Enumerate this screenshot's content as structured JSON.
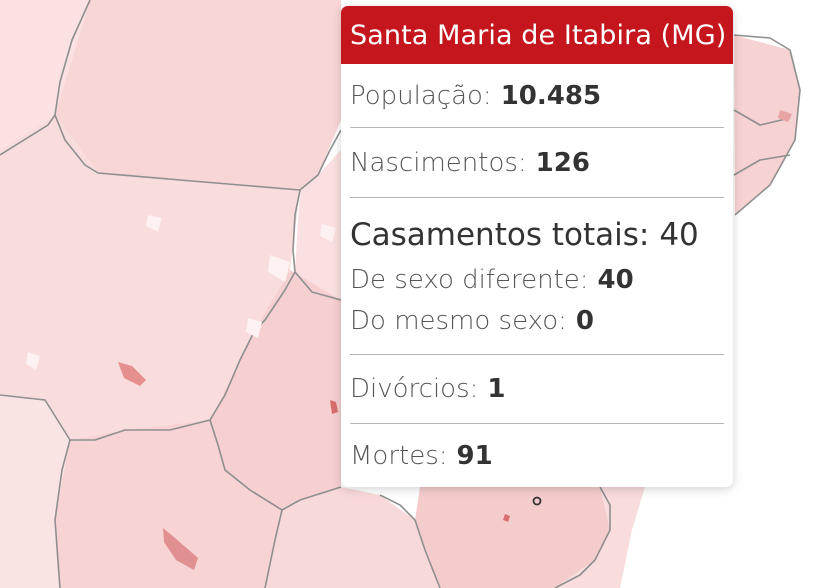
{
  "tooltip": {
    "title": "Santa Maria de Itabira (MG)",
    "header_color": "#c4161c",
    "populacao": {
      "label": "População:",
      "value": "10.485"
    },
    "nascimentos": {
      "label": "Nascimentos:",
      "value": "126"
    },
    "casamentos": {
      "label": "Casamentos totais:",
      "value": "40",
      "diferente": {
        "label": "De sexo diferente:",
        "value": "40"
      },
      "mesmo": {
        "label": "Do mesmo sexo:",
        "value": "0"
      }
    },
    "divorcios": {
      "label": "Divórcios:",
      "value": "1"
    },
    "mortes": {
      "label": "Mortes:",
      "value": "91"
    }
  },
  "map": {
    "fill_color": "#f8dada",
    "border_color": "#8f8f8f",
    "highlight_color": "#e58f8f"
  }
}
